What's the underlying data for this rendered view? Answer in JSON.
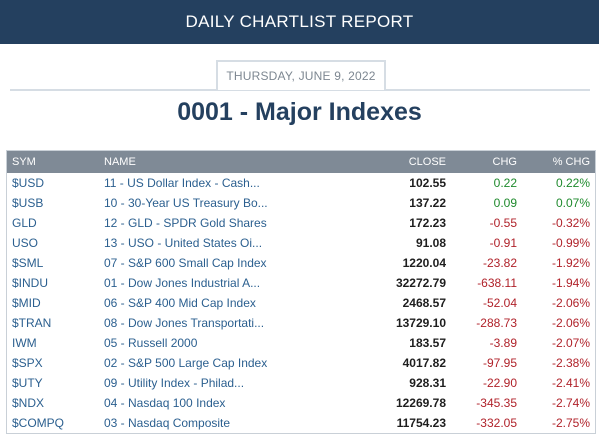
{
  "header": {
    "title": "DAILY CHARTLIST REPORT"
  },
  "date": "THURSDAY, JUNE 9, 2022",
  "page_title": "0001 - Major Indexes",
  "table": {
    "columns": [
      "SYM",
      "NAME",
      "CLOSE",
      "CHG",
      "% CHG"
    ],
    "rows": [
      {
        "sym": "$USD",
        "name": "11 - US Dollar Index - Cash...",
        "close": "102.55",
        "chg": "0.22",
        "pct": "0.22%",
        "dir": "pos"
      },
      {
        "sym": "$USB",
        "name": "10 - 30-Year US Treasury Bo...",
        "close": "137.22",
        "chg": "0.09",
        "pct": "0.07%",
        "dir": "pos"
      },
      {
        "sym": "GLD",
        "name": "12 - GLD - SPDR Gold Shares",
        "close": "172.23",
        "chg": "-0.55",
        "pct": "-0.32%",
        "dir": "neg"
      },
      {
        "sym": "USO",
        "name": "13 - USO - United States Oi...",
        "close": "91.08",
        "chg": "-0.91",
        "pct": "-0.99%",
        "dir": "neg"
      },
      {
        "sym": "$SML",
        "name": "07 - S&P 600 Small Cap Index",
        "close": "1220.04",
        "chg": "-23.82",
        "pct": "-1.92%",
        "dir": "neg"
      },
      {
        "sym": "$INDU",
        "name": "01 - Dow Jones Industrial A...",
        "close": "32272.79",
        "chg": "-638.11",
        "pct": "-1.94%",
        "dir": "neg"
      },
      {
        "sym": "$MID",
        "name": "06 - S&P 400 Mid Cap Index",
        "close": "2468.57",
        "chg": "-52.04",
        "pct": "-2.06%",
        "dir": "neg"
      },
      {
        "sym": "$TRAN",
        "name": "08 - Dow Jones Transportati...",
        "close": "13729.10",
        "chg": "-288.73",
        "pct": "-2.06%",
        "dir": "neg"
      },
      {
        "sym": "IWM",
        "name": "05 - Russell 2000",
        "close": "183.57",
        "chg": "-3.89",
        "pct": "-2.07%",
        "dir": "neg"
      },
      {
        "sym": "$SPX",
        "name": "02 - S&P 500 Large Cap Index",
        "close": "4017.82",
        "chg": "-97.95",
        "pct": "-2.38%",
        "dir": "neg"
      },
      {
        "sym": "$UTY",
        "name": "09 - Utility Index - Philad...",
        "close": "928.31",
        "chg": "-22.90",
        "pct": "-2.41%",
        "dir": "neg"
      },
      {
        "sym": "$NDX",
        "name": "04 - Nasdaq 100 Index",
        "close": "12269.78",
        "chg": "-345.35",
        "pct": "-2.74%",
        "dir": "neg"
      },
      {
        "sym": "$COMPQ",
        "name": "03 - Nasdaq Composite",
        "close": "11754.23",
        "chg": "-332.05",
        "pct": "-2.75%",
        "dir": "neg"
      }
    ]
  },
  "colors": {
    "header_bg": "#24405f",
    "table_header_bg": "#7f8a96",
    "positive": "#1f8a2d",
    "negative": "#b0222a",
    "link": "#2b5f8f"
  }
}
